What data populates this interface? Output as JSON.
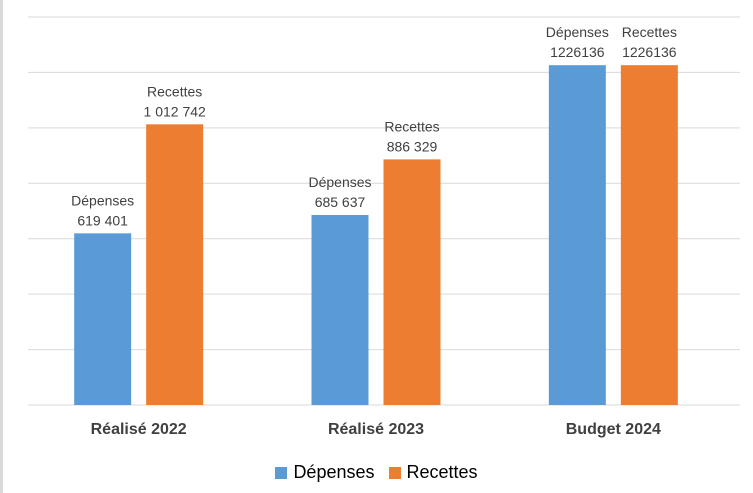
{
  "chart_data": {
    "type": "bar",
    "categories": [
      "Réalisé 2022",
      "Réalisé 2023",
      "Budget 2024"
    ],
    "series": [
      {
        "name": "Dépenses",
        "color": "#5b9bd5",
        "values": [
          619401,
          685637,
          1226136
        ],
        "labels": [
          [
            "Dépenses",
            "619 401"
          ],
          [
            "Dépenses",
            "685 637"
          ],
          [
            "Dépenses",
            "1226136"
          ]
        ]
      },
      {
        "name": "Recettes",
        "color": "#ed7d31",
        "values": [
          1012742,
          886329,
          1226136
        ],
        "labels": [
          [
            "Recettes",
            "1 012 742"
          ],
          [
            "Recettes",
            "886 329"
          ],
          [
            "Recettes",
            "1226136"
          ]
        ]
      }
    ],
    "ylim": [
      0,
      1400000
    ],
    "grid": true,
    "legend_position": "bottom"
  }
}
